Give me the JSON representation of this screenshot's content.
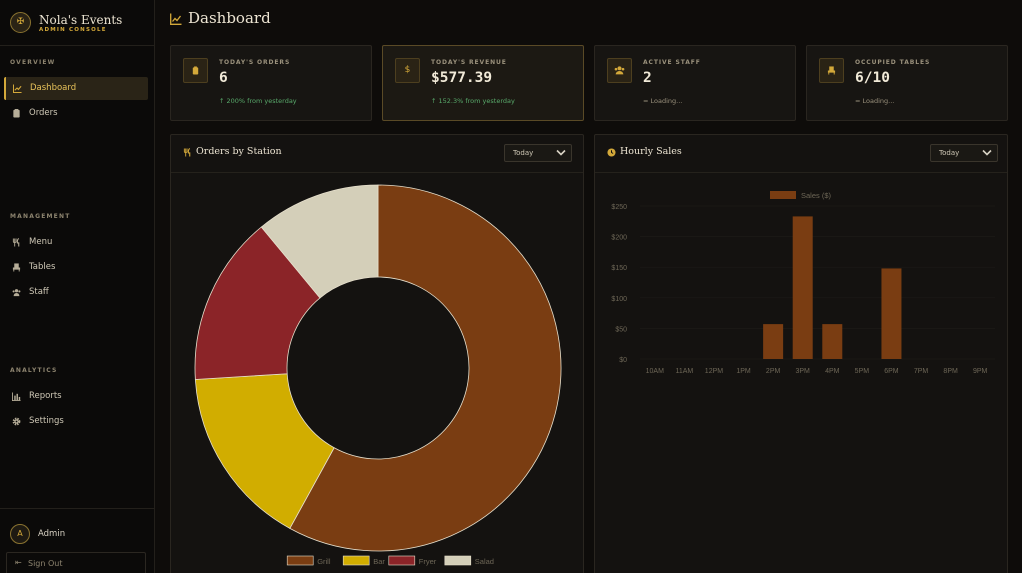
{
  "brand": {
    "title": "Nola's Events",
    "subtitle": "ADMIN CONSOLE"
  },
  "sidebar": {
    "sections": [
      {
        "label": "OVERVIEW"
      },
      {
        "label": "MANAGEMENT"
      },
      {
        "label": "ANALYTICS"
      }
    ],
    "items": [
      {
        "label": "Dashboard",
        "icon": "chart-line-icon",
        "active": true
      },
      {
        "label": "Orders",
        "icon": "receipt-icon"
      },
      {
        "label": "Menu",
        "icon": "utensils-icon"
      },
      {
        "label": "Tables",
        "icon": "chair-icon"
      },
      {
        "label": "Staff",
        "icon": "users-icon"
      },
      {
        "label": "Reports",
        "icon": "bar-chart-icon"
      },
      {
        "label": "Settings",
        "icon": "gear-icon"
      }
    ]
  },
  "user": {
    "initial": "A",
    "name": "Admin",
    "signout_label": "Sign Out"
  },
  "header": {
    "title": "Dashboard"
  },
  "stats": [
    {
      "label": "TODAY'S ORDERS",
      "value": "6",
      "sub": "↑ 200% from yesterday",
      "icon": "clipboard-icon"
    },
    {
      "label": "TODAY'S REVENUE",
      "value": "$577.39",
      "sub": "↑ 152.3% from yesterday",
      "icon": "dollar-icon"
    },
    {
      "label": "ACTIVE STAFF",
      "value": "2",
      "sub": "= Loading...",
      "icon": "users-icon"
    },
    {
      "label": "OCCUPIED TABLES",
      "value": "6/10",
      "sub": "= Loading...",
      "icon": "chair-icon"
    }
  ],
  "panels": {
    "station": {
      "title": "Orders by Station",
      "filter": "Today"
    },
    "hourly": {
      "title": "Hourly Sales",
      "filter": "Today"
    }
  },
  "colors": {
    "accent": "#d4a93a",
    "grill": "#7a3d12",
    "bar": "#d1ad00",
    "fryer": "#8b2428",
    "salad": "#d4cfb9"
  },
  "chart_data": [
    {
      "type": "pie",
      "labels": [
        "Grill",
        "Bar",
        "Fryer",
        "Salad"
      ],
      "values": [
        58,
        16,
        15,
        11
      ],
      "colors": [
        "#7a3d12",
        "#d1ad00",
        "#8b2428",
        "#d4cfb9"
      ],
      "legend": "bottom"
    },
    {
      "type": "bar",
      "categories": [
        "10AM",
        "11AM",
        "12PM",
        "1PM",
        "2PM",
        "3PM",
        "4PM",
        "5PM",
        "6PM",
        "7PM",
        "8PM",
        "9PM"
      ],
      "series": [
        {
          "name": "Sales ($)",
          "values": [
            0,
            0,
            0,
            0,
            57,
            233,
            57,
            0,
            148,
            0,
            0,
            0
          ]
        }
      ],
      "ylim": [
        0,
        250
      ],
      "yticks": [
        "$0",
        "$50",
        "$100",
        "$150",
        "$200",
        "$250"
      ],
      "legend": "top",
      "color": "#7a3d12"
    }
  ]
}
